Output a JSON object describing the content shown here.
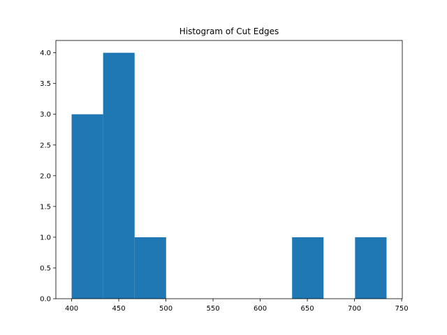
{
  "chart_data": {
    "type": "bar",
    "title": "Histogram of Cut Edges",
    "xlabel": "",
    "ylabel": "",
    "bin_edges": [
      400,
      433.4,
      466.8,
      500.2,
      533.6,
      567.0,
      600.4,
      633.8,
      667.2,
      700.6,
      734.0
    ],
    "values": [
      3,
      4,
      1,
      0,
      0,
      0,
      0,
      1,
      0,
      1
    ],
    "xlim": [
      383.3,
      750.7
    ],
    "ylim": [
      0,
      4.2
    ],
    "xticks": [
      400,
      450,
      500,
      550,
      600,
      650,
      700,
      750
    ],
    "yticks": [
      "0.0",
      "0.5",
      "1.0",
      "1.5",
      "2.0",
      "2.5",
      "3.0",
      "3.5",
      "4.0"
    ],
    "bar_color": "#1f77b4",
    "grid": false,
    "legend": "none"
  }
}
